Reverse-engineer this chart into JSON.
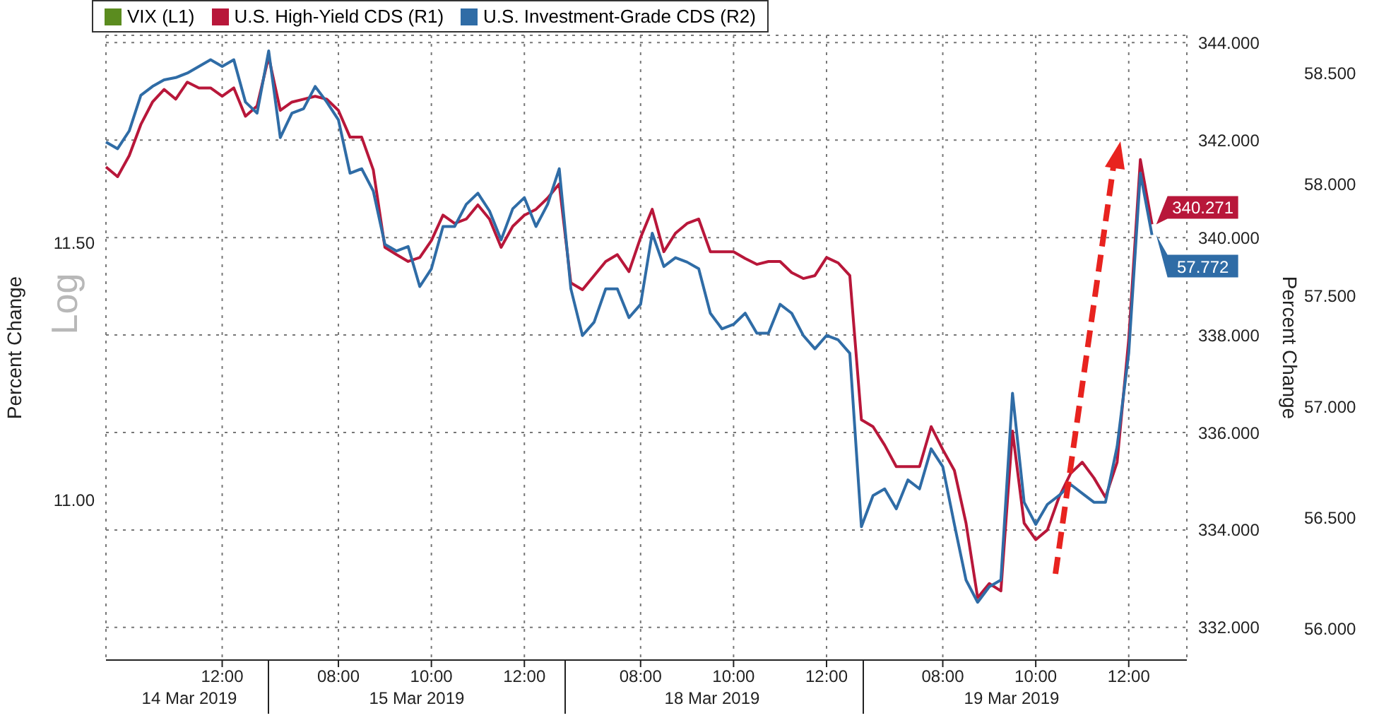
{
  "chart_data": {
    "type": "line",
    "ylabel": "Percent Change",
    "y2label": "Percent Change",
    "annotations": [
      "Log",
      "14 Mar 2019",
      "15 Mar 2019",
      "18 Mar 2019",
      "19 Mar 2019"
    ],
    "categories": [
      null,
      null,
      null,
      null,
      null,
      null,
      null,
      null,
      null,
      null,
      "12:00",
      null,
      null,
      null,
      null,
      null,
      null,
      null,
      null,
      null,
      "08:00",
      null,
      null,
      null,
      null,
      null,
      null,
      null,
      "10:00",
      null,
      null,
      null,
      null,
      null,
      null,
      null,
      "12:00",
      null,
      null,
      null,
      null,
      null,
      null,
      null,
      null,
      null,
      "08:00",
      null,
      null,
      null,
      null,
      null,
      null,
      null,
      "10:00",
      null,
      null,
      null,
      null,
      null,
      null,
      null,
      "12:00",
      null,
      null,
      null,
      null,
      null,
      null,
      null,
      null,
      null,
      "08:00",
      null,
      null,
      null,
      null,
      null,
      null,
      null,
      "10:00",
      null,
      null,
      null,
      null,
      null,
      null,
      null,
      "12:00",
      null,
      null,
      null,
      null,
      null
    ],
    "series": [
      {
        "name": "VIX (L1)",
        "color": "#5b8c1f",
        "axis": "y",
        "values": [
          null,
          null,
          null,
          null,
          null,
          null,
          null,
          null,
          null,
          null,
          null,
          null,
          null,
          null,
          null,
          null,
          null,
          null,
          null,
          null,
          null,
          null,
          null,
          null,
          null,
          null,
          null,
          null,
          null,
          null,
          null,
          null,
          null,
          null,
          null,
          null,
          null,
          null,
          null,
          null,
          null,
          null,
          null,
          null,
          null,
          null,
          null,
          null,
          null,
          null,
          null,
          null,
          null,
          null,
          null,
          null,
          null,
          null,
          null,
          null,
          null,
          null,
          null,
          null,
          null,
          null,
          null,
          null,
          null,
          null,
          null,
          null,
          null,
          null,
          null,
          null,
          null,
          null,
          null,
          null,
          null,
          null,
          null,
          null,
          null,
          null,
          null,
          null,
          null,
          null,
          null,
          null,
          null,
          null
        ]
      },
      {
        "name": "U.S. High-Yield CDS (R1)",
        "color": "#b8173a",
        "axis": "y2",
        "values": [
          341.45,
          341.25,
          341.68,
          342.32,
          342.78,
          343.04,
          342.84,
          343.19,
          343.07,
          343.07,
          342.9,
          343.07,
          342.49,
          342.7,
          343.71,
          342.61,
          342.78,
          342.84,
          342.9,
          342.84,
          342.61,
          342.06,
          342.06,
          341.39,
          339.8,
          339.65,
          339.51,
          339.59,
          339.94,
          340.46,
          340.29,
          340.38,
          340.67,
          340.38,
          339.8,
          340.23,
          340.46,
          340.58,
          340.81,
          341.1,
          339.07,
          338.93,
          339.22,
          339.51,
          339.65,
          339.3,
          340.0,
          340.58,
          339.71,
          340.09,
          340.29,
          340.38,
          339.71,
          339.71,
          339.71,
          339.57,
          339.45,
          339.51,
          339.51,
          339.28,
          339.16,
          339.22,
          339.59,
          339.48,
          339.22,
          336.26,
          336.12,
          335.74,
          335.3,
          335.3,
          335.3,
          336.12,
          335.65,
          335.22,
          334.14,
          332.61,
          332.9,
          332.75,
          336.03,
          334.14,
          333.8,
          334.0,
          334.67,
          335.16,
          335.39,
          335.07,
          334.67,
          335.39,
          337.91,
          341.6,
          340.271,
          null,
          null,
          null
        ],
        "value_labels": [
          null,
          null,
          null,
          null,
          null,
          null,
          null,
          null,
          null,
          null,
          null,
          null,
          null,
          null,
          null,
          null,
          null,
          null,
          null,
          null,
          null,
          null,
          null,
          null,
          null,
          null,
          null,
          null,
          null,
          null,
          null,
          null,
          null,
          null,
          null,
          null,
          null,
          null,
          null,
          null,
          null,
          null,
          null,
          null,
          null,
          null,
          null,
          null,
          null,
          null,
          null,
          null,
          null,
          null,
          null,
          null,
          null,
          null,
          null,
          null,
          null,
          null,
          null,
          null,
          null,
          null,
          null,
          null,
          null,
          null,
          null,
          null,
          null,
          null,
          null,
          null,
          null,
          null,
          null,
          null,
          null,
          null,
          null,
          null,
          null,
          null,
          null,
          null,
          null,
          null,
          "340.271",
          null,
          null,
          null
        ]
      },
      {
        "name": "U.S. Investment-Grade CDS (R2)",
        "color": "#2f6ca6",
        "axis": "y3",
        "values": [
          58.19,
          58.16,
          58.24,
          58.4,
          58.44,
          58.47,
          58.48,
          58.5,
          58.53,
          58.56,
          58.53,
          58.56,
          58.37,
          58.32,
          58.6,
          58.21,
          58.32,
          58.34,
          58.44,
          58.37,
          58.29,
          58.05,
          58.07,
          57.97,
          57.73,
          57.7,
          57.72,
          57.54,
          57.62,
          57.81,
          57.81,
          57.91,
          57.96,
          57.88,
          57.75,
          57.89,
          57.94,
          57.81,
          57.91,
          58.07,
          57.53,
          57.32,
          57.38,
          57.53,
          57.53,
          57.4,
          57.46,
          57.78,
          57.63,
          57.67,
          57.65,
          57.62,
          57.42,
          57.35,
          57.37,
          57.42,
          57.33,
          57.33,
          57.46,
          57.42,
          57.32,
          57.26,
          57.32,
          57.3,
          57.24,
          56.46,
          56.6,
          56.63,
          56.54,
          56.67,
          56.63,
          56.81,
          56.73,
          56.47,
          56.22,
          56.12,
          56.19,
          56.22,
          57.06,
          56.57,
          56.47,
          56.56,
          56.6,
          56.65,
          56.61,
          56.57,
          56.57,
          56.82,
          57.24,
          58.05,
          57.772,
          null,
          null,
          null
        ],
        "value_labels": [
          null,
          null,
          null,
          null,
          null,
          null,
          null,
          null,
          null,
          null,
          null,
          null,
          null,
          null,
          null,
          null,
          null,
          null,
          null,
          null,
          null,
          null,
          null,
          null,
          null,
          null,
          null,
          null,
          null,
          null,
          null,
          null,
          null,
          null,
          null,
          null,
          null,
          null,
          null,
          null,
          null,
          null,
          null,
          null,
          null,
          null,
          null,
          null,
          null,
          null,
          null,
          null,
          null,
          null,
          null,
          null,
          null,
          null,
          null,
          null,
          null,
          null,
          null,
          null,
          null,
          null,
          null,
          null,
          null,
          null,
          null,
          null,
          null,
          null,
          null,
          null,
          null,
          null,
          null,
          null,
          null,
          null,
          null,
          null,
          null,
          null,
          null,
          null,
          null,
          null,
          "57.772",
          null,
          null,
          null
        ]
      }
    ],
    "log": "y",
    "ylim": [
      10.7,
      11.92
    ],
    "yticks": [
      {
        "value": 11,
        "label": "11.00"
      },
      {
        "value": 11.5,
        "label": "11.50"
      }
    ],
    "y2lim": [
      331.33,
      344.15
    ],
    "y2ticks": [
      {
        "value": 332,
        "label": "332.000"
      },
      {
        "value": 334,
        "label": "334.000"
      },
      {
        "value": 336,
        "label": "336.000"
      },
      {
        "value": 338,
        "label": "338.000"
      },
      {
        "value": 340,
        "label": "340.000"
      },
      {
        "value": 342,
        "label": "342.000"
      },
      {
        "value": 344,
        "label": "344.000"
      }
    ],
    "y3lim": [
      55.86,
      58.67
    ],
    "y3ticks": [
      {
        "value": 56,
        "label": "56.000"
      },
      {
        "value": 56.5,
        "label": "56.500"
      },
      {
        "value": 57,
        "label": "57.000"
      },
      {
        "value": 57.5,
        "label": "57.500"
      },
      {
        "value": 58,
        "label": "58.000"
      },
      {
        "value": 58.5,
        "label": "58.500"
      }
    ],
    "grid": true,
    "legend": "top left",
    "line_style": "solid"
  }
}
